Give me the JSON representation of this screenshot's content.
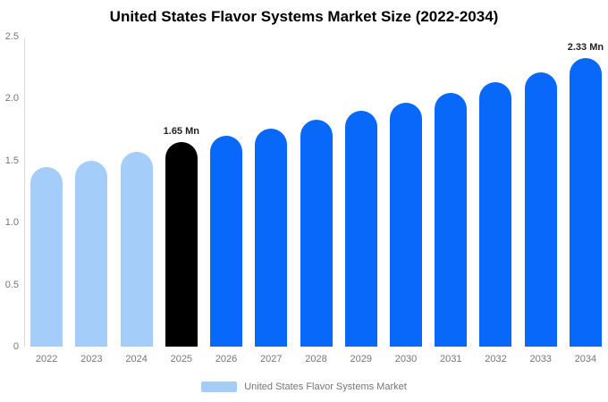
{
  "chart_data": {
    "type": "bar",
    "title": "United States Flavor Systems Market Size (2022-2034)",
    "xlabel": "",
    "ylabel": "",
    "unit": "Mn",
    "categories": [
      "2022",
      "2023",
      "2024",
      "2025",
      "2026",
      "2027",
      "2028",
      "2029",
      "2030",
      "2031",
      "2032",
      "2033",
      "2034"
    ],
    "values": [
      1.45,
      1.5,
      1.57,
      1.65,
      1.7,
      1.76,
      1.83,
      1.9,
      1.97,
      2.05,
      2.13,
      2.21,
      2.33
    ],
    "bar_styles": [
      "historical",
      "historical",
      "historical",
      "base_year",
      "forecast",
      "forecast",
      "forecast",
      "forecast",
      "forecast",
      "forecast",
      "forecast",
      "forecast",
      "forecast"
    ],
    "colors": {
      "historical": "#A4CDFA",
      "base_year": "#000000",
      "forecast": "#0768FA"
    },
    "ylim": [
      0,
      2.5
    ],
    "y_ticks": [
      {
        "value": 0,
        "label": "0"
      },
      {
        "value": 0.5,
        "label": "0.5"
      },
      {
        "value": 1.0,
        "label": "1.0"
      },
      {
        "value": 1.5,
        "label": "1.5"
      },
      {
        "value": 2.0,
        "label": "2.0"
      },
      {
        "value": 2.5,
        "label": "2.5"
      }
    ],
    "grid": "off",
    "annotations": [
      {
        "category": "2025",
        "text": "1.65 Mn"
      },
      {
        "category": "2034",
        "text": "2.33 Mn"
      }
    ],
    "legend": [
      {
        "label": "United States Flavor Systems Market",
        "color": "#A4CDFA"
      }
    ],
    "legend_position": "bottom-center"
  }
}
